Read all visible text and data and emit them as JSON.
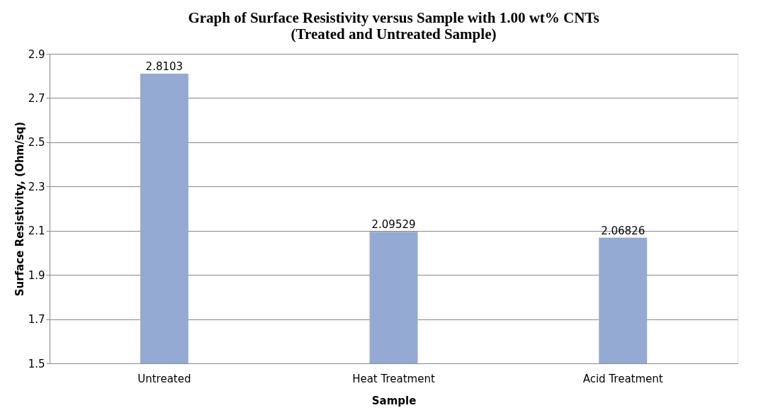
{
  "chart_data": {
    "type": "bar",
    "title": "Graph of Surface Resistivity versus Sample with 1.00 wt% CNTs\n(Treated and Untreated Sample)",
    "xlabel": "Sample",
    "ylabel": "Surface Resistivity, (Ohm/sq)",
    "categories": [
      "Untreated",
      "Heat Treatment",
      "Acid Treatment"
    ],
    "values": [
      2.8103,
      2.09529,
      2.06826
    ],
    "color": "#95aad3",
    "ylim": [
      1.5,
      2.9
    ],
    "yticks": [
      1.5,
      1.7,
      1.9,
      2.1,
      2.3,
      2.5,
      2.7,
      2.9
    ],
    "grid": "y",
    "data_labels": true
  }
}
